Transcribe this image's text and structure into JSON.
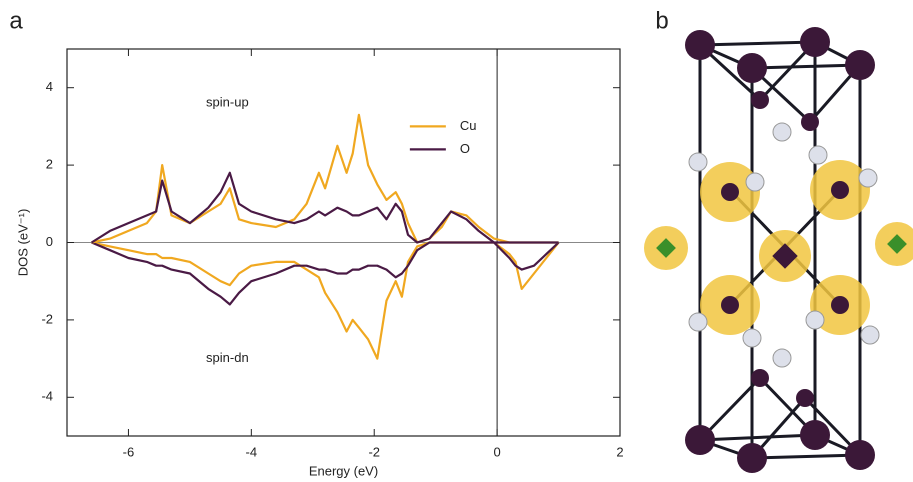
{
  "chart_data": {
    "type": "line",
    "panel_label": "a",
    "xlabel": "Energy (eV)",
    "ylabel": "DOS (eV⁻¹)",
    "xlim": [
      -7,
      2
    ],
    "ylim": [
      -5,
      5
    ],
    "xticks": [
      -6,
      -4,
      -2,
      0,
      2
    ],
    "yticks": [
      -4,
      -2,
      0,
      2,
      4
    ],
    "legend": "upper right",
    "annotations": [
      "spin-up",
      "spin-dn"
    ],
    "x": [
      -6.6,
      -6.3,
      -6.0,
      -5.7,
      -5.55,
      -5.45,
      -5.3,
      -5.0,
      -4.7,
      -4.5,
      -4.35,
      -4.2,
      -4.0,
      -3.6,
      -3.3,
      -3.1,
      -2.9,
      -2.8,
      -2.6,
      -2.45,
      -2.35,
      -2.25,
      -2.1,
      -1.95,
      -1.8,
      -1.65,
      -1.55,
      -1.45,
      -1.3,
      -1.1,
      -0.9,
      -0.75,
      -0.5,
      -0.3,
      -0.05,
      0.2,
      0.3,
      0.4,
      0.6,
      0.8,
      1.0
    ],
    "series": [
      {
        "name": "Cu",
        "color": "#f0a820",
        "values": [
          0,
          0.1,
          0.3,
          0.5,
          0.8,
          2.0,
          0.7,
          0.5,
          0.8,
          1.0,
          1.4,
          0.6,
          0.5,
          0.4,
          0.6,
          1.0,
          1.8,
          1.4,
          2.5,
          1.8,
          2.3,
          3.3,
          2.0,
          1.5,
          1.1,
          1.3,
          1.0,
          0.5,
          0,
          0.1,
          0.4,
          0.8,
          0.7,
          0.4,
          0.1,
          0,
          0,
          0,
          0,
          0,
          0
        ],
        "values_dn": [
          0,
          -0.1,
          -0.2,
          -0.3,
          -0.3,
          -0.4,
          -0.4,
          -0.5,
          -0.8,
          -1.0,
          -1.1,
          -0.8,
          -0.6,
          -0.5,
          -0.5,
          -0.7,
          -0.9,
          -1.3,
          -1.8,
          -2.3,
          -2.0,
          -2.2,
          -2.5,
          -3.0,
          -1.5,
          -1.0,
          -1.4,
          -0.5,
          -0.1,
          0,
          0,
          0,
          0,
          0,
          0,
          -0.3,
          -0.5,
          -1.2,
          -0.8,
          -0.4,
          0
        ]
      },
      {
        "name": "O",
        "color": "#4a1a45",
        "values": [
          0,
          0.3,
          0.5,
          0.7,
          0.8,
          1.6,
          0.8,
          0.5,
          0.9,
          1.3,
          1.8,
          1.0,
          0.8,
          0.6,
          0.5,
          0.6,
          0.8,
          0.7,
          0.9,
          0.8,
          0.7,
          0.7,
          0.8,
          0.9,
          0.6,
          1.0,
          0.8,
          0.2,
          0,
          0.1,
          0.5,
          0.8,
          0.6,
          0.3,
          0,
          0,
          0,
          0,
          0,
          0,
          0
        ],
        "values_dn": [
          0,
          -0.2,
          -0.4,
          -0.5,
          -0.6,
          -0.6,
          -0.7,
          -0.8,
          -1.2,
          -1.4,
          -1.6,
          -1.3,
          -1.0,
          -0.8,
          -0.6,
          -0.6,
          -0.7,
          -0.7,
          -0.8,
          -0.8,
          -0.7,
          -0.7,
          -0.6,
          -0.6,
          -0.7,
          -0.9,
          -0.8,
          -0.6,
          -0.2,
          0,
          0,
          0,
          0,
          0,
          0,
          -0.4,
          -0.6,
          -0.7,
          -0.6,
          -0.3,
          0
        ]
      }
    ]
  },
  "structure": {
    "panel_label": "b"
  }
}
